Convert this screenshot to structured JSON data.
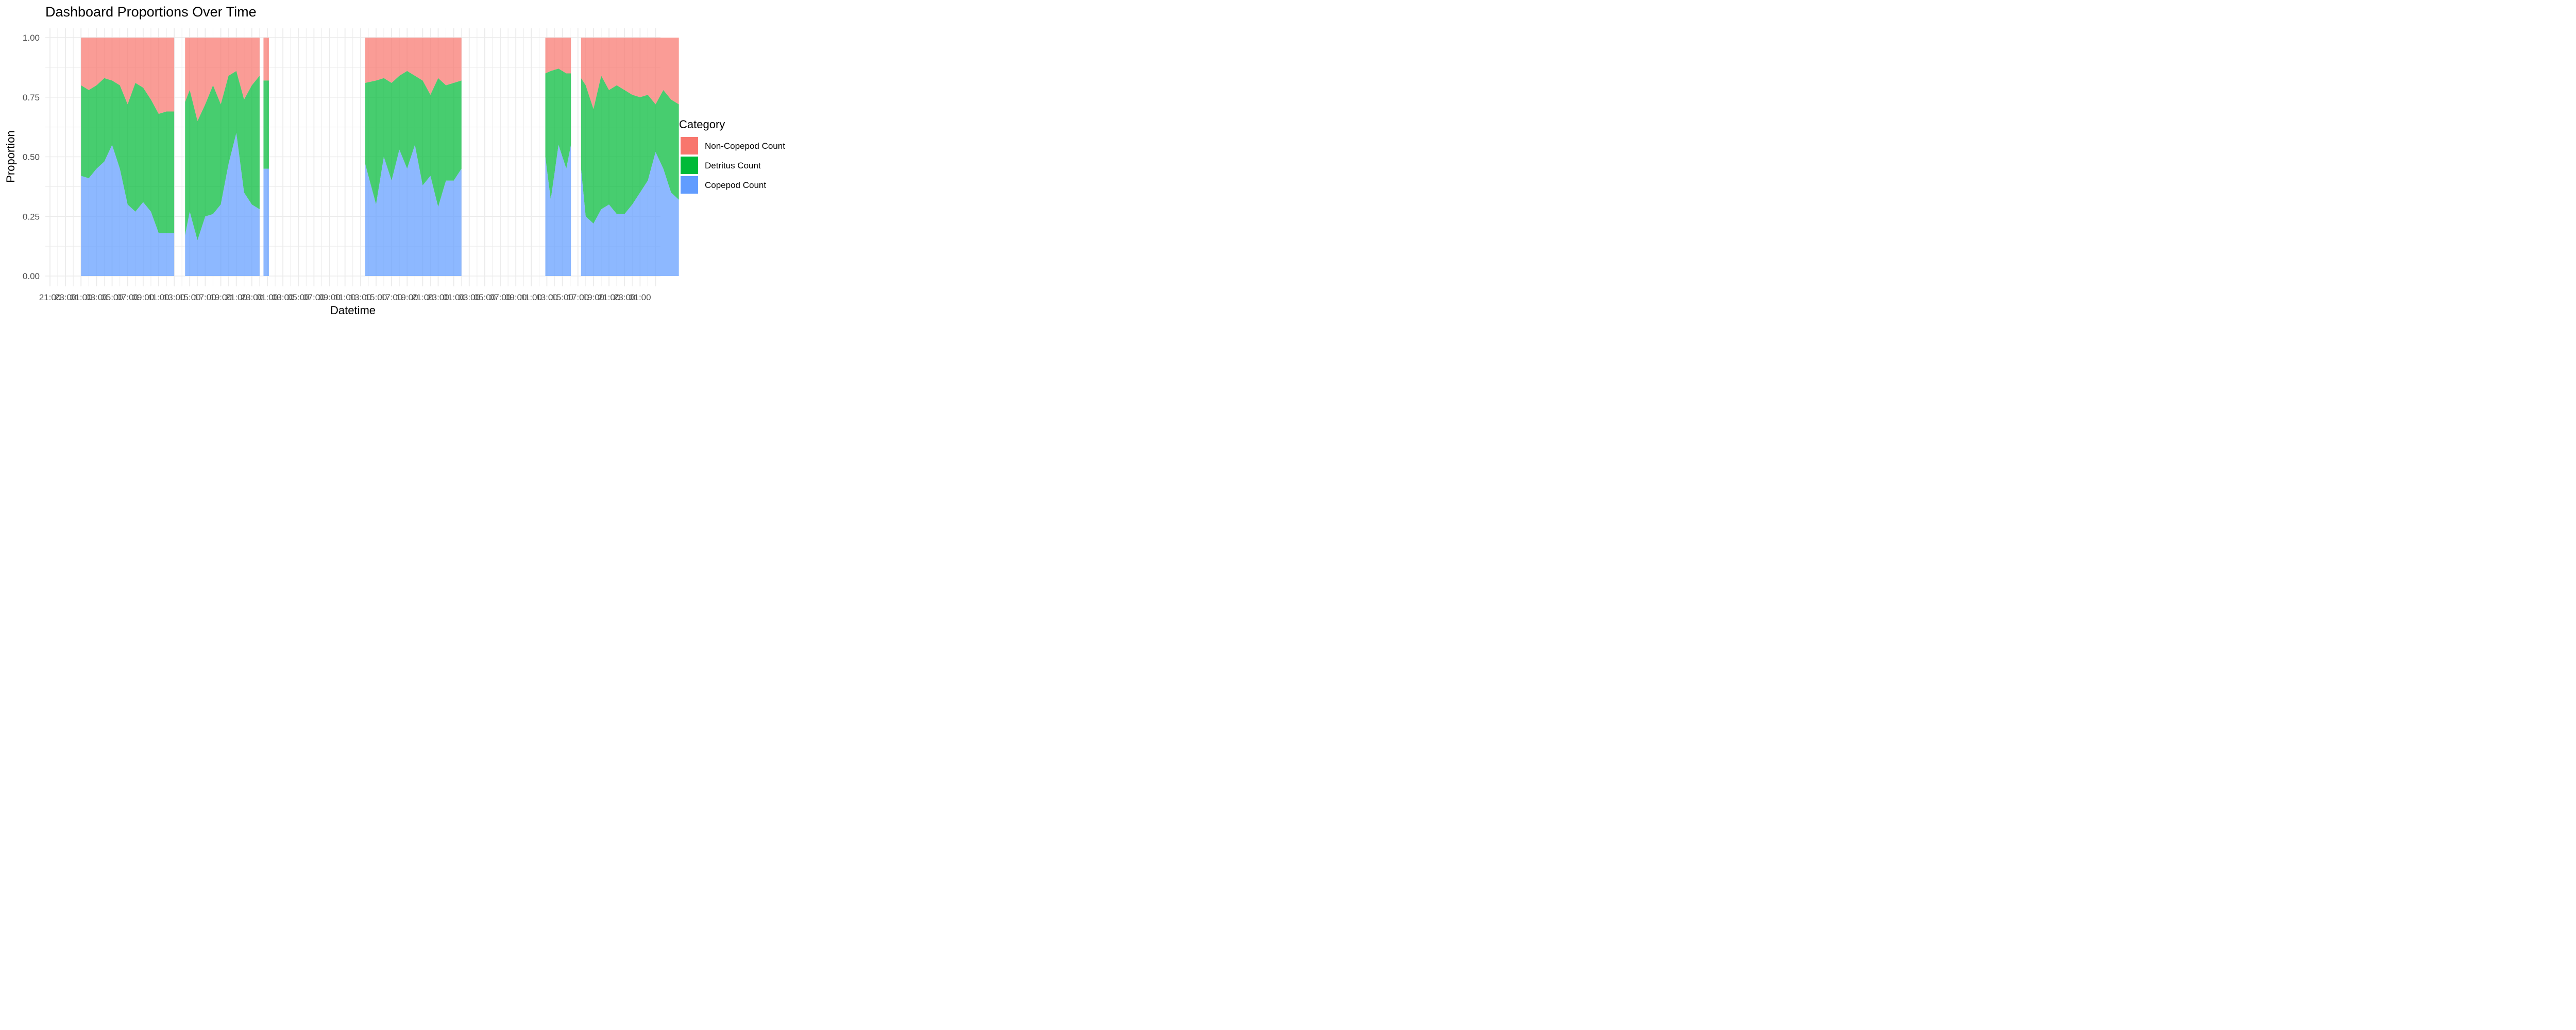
{
  "chart_data": {
    "type": "area",
    "title": "Dashboard Proportions Over Time",
    "xlabel": "Datetime",
    "ylabel": "Proportion",
    "ylim": [
      0,
      1
    ],
    "yticks": [
      "0.00",
      "0.25",
      "0.50",
      "0.75",
      "1.00"
    ],
    "xticks": [
      "21:00",
      "23:00",
      "01:00",
      "03:00",
      "05:00",
      "07:00",
      "09:00",
      "11:00",
      "13:00",
      "15:00",
      "17:00",
      "19:00",
      "21:00",
      "23:00",
      "01:00",
      "03:00",
      "05:00",
      "07:00",
      "09:00",
      "11:00",
      "13:00",
      "15:00",
      "17:00",
      "19:00",
      "21:00",
      "23:00",
      "01:00",
      "03:00",
      "05:00",
      "07:00",
      "09:00",
      "11:00",
      "13:00",
      "15:00",
      "17:00",
      "19:00",
      "21:00",
      "23:00",
      "01:00"
    ],
    "stacking": "fill",
    "grid": true,
    "legend": {
      "title": "Category",
      "position": "right",
      "entries": [
        "Non-Copepod Count",
        "Detritus Count",
        "Copepod Count"
      ]
    },
    "colors": {
      "Non-Copepod Count": "#F8766D",
      "Detritus Count": "#00BA38",
      "Copepod Count": "#619CFF"
    },
    "segments": [
      {
        "x_hours": [
          2,
          3,
          4,
          5,
          6,
          7,
          8,
          9,
          10,
          11,
          12,
          13,
          14
        ],
        "copepod": [
          0.42,
          0.41,
          0.45,
          0.48,
          0.55,
          0.45,
          0.3,
          0.27,
          0.31,
          0.27,
          0.18,
          0.18,
          0.18
        ],
        "detritus_top": [
          0.8,
          0.78,
          0.8,
          0.83,
          0.82,
          0.8,
          0.72,
          0.81,
          0.79,
          0.74,
          0.68,
          0.69,
          0.69
        ]
      },
      {
        "x_hours": [
          15.4,
          16,
          17,
          18,
          19,
          20,
          21,
          22,
          23,
          24,
          25
        ],
        "copepod": [
          0.17,
          0.27,
          0.15,
          0.25,
          0.26,
          0.3,
          0.47,
          0.6,
          0.35,
          0.3,
          0.28
        ],
        "detritus_top": [
          0.73,
          0.78,
          0.65,
          0.72,
          0.8,
          0.72,
          0.84,
          0.86,
          0.74,
          0.8,
          0.84
        ]
      },
      {
        "x_hours": [
          25.5,
          26.2
        ],
        "copepod": [
          0.45,
          0.45
        ],
        "detritus_top": [
          0.82,
          0.82
        ]
      },
      {
        "x_hours": [
          38.6,
          40,
          41,
          42,
          43,
          44,
          45,
          46,
          47,
          48,
          49,
          50,
          51
        ],
        "copepod": [
          0.47,
          0.3,
          0.5,
          0.4,
          0.53,
          0.45,
          0.55,
          0.38,
          0.42,
          0.29,
          0.4,
          0.4,
          0.45
        ],
        "detritus_top": [
          0.81,
          0.82,
          0.83,
          0.81,
          0.84,
          0.86,
          0.84,
          0.82,
          0.76,
          0.83,
          0.8,
          0.81,
          0.82
        ]
      },
      {
        "x_hours": [
          61.8,
          62.5,
          63.5,
          64.5,
          65.1
        ],
        "copepod": [
          0.5,
          0.32,
          0.55,
          0.45,
          0.55
        ],
        "detritus_top": [
          0.85,
          0.86,
          0.87,
          0.85,
          0.85
        ]
      },
      {
        "x_hours": [
          66.4,
          67,
          68,
          69,
          70,
          71,
          72,
          73,
          74,
          75,
          76,
          77,
          78,
          79
        ],
        "copepod": [
          0.45,
          0.25,
          0.22,
          0.28,
          0.3,
          0.26,
          0.26,
          0.3,
          0.35,
          0.4,
          0.52,
          0.45,
          0.35,
          0.32
        ],
        "detritus_top": [
          0.83,
          0.8,
          0.7,
          0.84,
          0.78,
          0.8,
          0.78,
          0.76,
          0.75,
          0.76,
          0.72,
          0.78,
          0.74,
          0.72
        ]
      }
    ]
  }
}
